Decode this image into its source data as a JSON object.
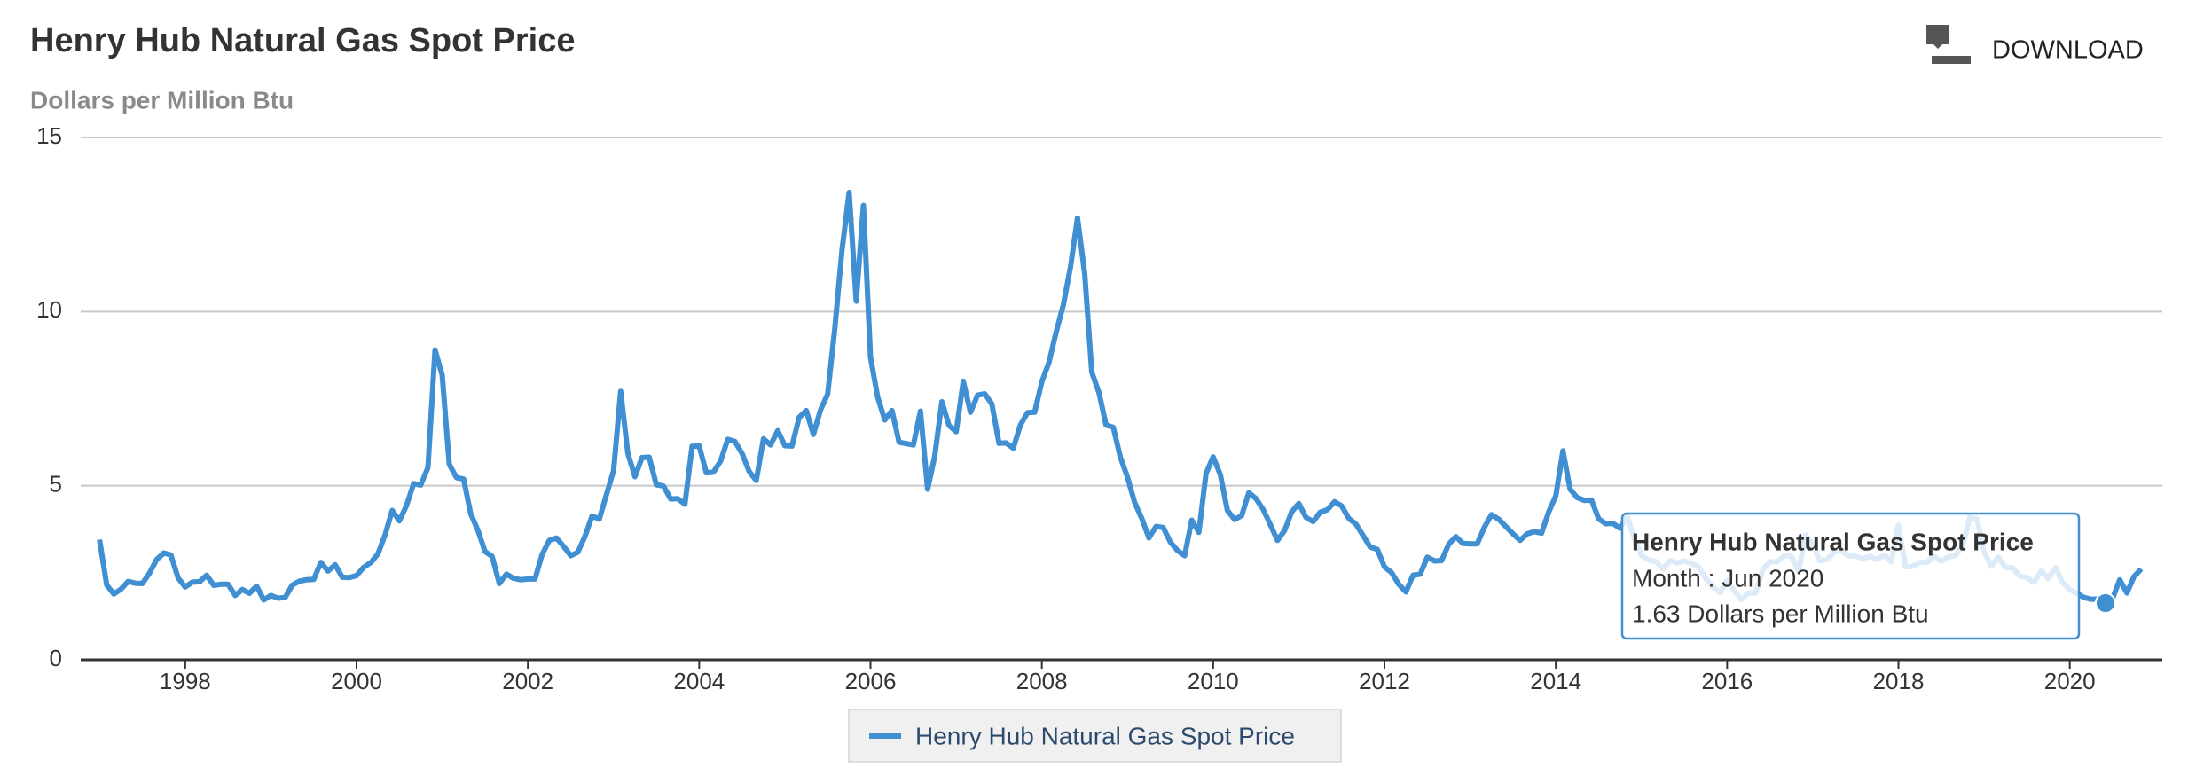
{
  "chart_data": {
    "type": "line",
    "title": "Henry Hub Natural Gas Spot Price",
    "subtitle": "Dollars per Million Btu",
    "download": "DOWNLOAD",
    "x": [
      "1997-01",
      "1997-02",
      "1997-03",
      "1997-04",
      "1997-05",
      "1997-06",
      "1997-07",
      "1997-08",
      "1997-09",
      "1997-10",
      "1997-11",
      "1997-12",
      "1998-01",
      "1998-02",
      "1998-03",
      "1998-04",
      "1998-05",
      "1998-06",
      "1998-07",
      "1998-08",
      "1998-09",
      "1998-10",
      "1998-11",
      "1998-12",
      "1999-01",
      "1999-02",
      "1999-03",
      "1999-04",
      "1999-05",
      "1999-06",
      "1999-07",
      "1999-08",
      "1999-09",
      "1999-10",
      "1999-11",
      "1999-12",
      "2000-01",
      "2000-02",
      "2000-03",
      "2000-04",
      "2000-05",
      "2000-06",
      "2000-07",
      "2000-08",
      "2000-09",
      "2000-10",
      "2000-11",
      "2000-12",
      "2001-01",
      "2001-02",
      "2001-03",
      "2001-04",
      "2001-05",
      "2001-06",
      "2001-07",
      "2001-08",
      "2001-09",
      "2001-10",
      "2001-11",
      "2001-12",
      "2002-01",
      "2002-02",
      "2002-03",
      "2002-04",
      "2002-05",
      "2002-06",
      "2002-07",
      "2002-08",
      "2002-09",
      "2002-10",
      "2002-11",
      "2002-12",
      "2003-01",
      "2003-02",
      "2003-03",
      "2003-04",
      "2003-05",
      "2003-06",
      "2003-07",
      "2003-08",
      "2003-09",
      "2003-10",
      "2003-11",
      "2003-12",
      "2004-01",
      "2004-02",
      "2004-03",
      "2004-04",
      "2004-05",
      "2004-06",
      "2004-07",
      "2004-08",
      "2004-09",
      "2004-10",
      "2004-11",
      "2004-12",
      "2005-01",
      "2005-02",
      "2005-03",
      "2005-04",
      "2005-05",
      "2005-06",
      "2005-07",
      "2005-08",
      "2005-09",
      "2005-10",
      "2005-11",
      "2005-12",
      "2006-01",
      "2006-02",
      "2006-03",
      "2006-04",
      "2006-05",
      "2006-06",
      "2006-07",
      "2006-08",
      "2006-09",
      "2006-10",
      "2006-11",
      "2006-12",
      "2007-01",
      "2007-02",
      "2007-03",
      "2007-04",
      "2007-05",
      "2007-06",
      "2007-07",
      "2007-08",
      "2007-09",
      "2007-10",
      "2007-11",
      "2007-12",
      "2008-01",
      "2008-02",
      "2008-03",
      "2008-04",
      "2008-05",
      "2008-06",
      "2008-07",
      "2008-08",
      "2008-09",
      "2008-10",
      "2008-11",
      "2008-12",
      "2009-01",
      "2009-02",
      "2009-03",
      "2009-04",
      "2009-05",
      "2009-06",
      "2009-07",
      "2009-08",
      "2009-09",
      "2009-10",
      "2009-11",
      "2009-12",
      "2010-01",
      "2010-02",
      "2010-03",
      "2010-04",
      "2010-05",
      "2010-06",
      "2010-07",
      "2010-08",
      "2010-09",
      "2010-10",
      "2010-11",
      "2010-12",
      "2011-01",
      "2011-02",
      "2011-03",
      "2011-04",
      "2011-05",
      "2011-06",
      "2011-07",
      "2011-08",
      "2011-09",
      "2011-10",
      "2011-11",
      "2011-12",
      "2012-01",
      "2012-02",
      "2012-03",
      "2012-04",
      "2012-05",
      "2012-06",
      "2012-07",
      "2012-08",
      "2012-09",
      "2012-10",
      "2012-11",
      "2012-12",
      "2013-01",
      "2013-02",
      "2013-03",
      "2013-04",
      "2013-05",
      "2013-06",
      "2013-07",
      "2013-08",
      "2013-09",
      "2013-10",
      "2013-11",
      "2013-12",
      "2014-01",
      "2014-02",
      "2014-03",
      "2014-04",
      "2014-05",
      "2014-06",
      "2014-07",
      "2014-08",
      "2014-09",
      "2014-10",
      "2014-11",
      "2014-12",
      "2015-01",
      "2015-02",
      "2015-03",
      "2015-04",
      "2015-05",
      "2015-06",
      "2015-07",
      "2015-08",
      "2015-09",
      "2015-10",
      "2015-11",
      "2015-12",
      "2016-01",
      "2016-02",
      "2016-03",
      "2016-04",
      "2016-05",
      "2016-06",
      "2016-07",
      "2016-08",
      "2016-09",
      "2016-10",
      "2016-11",
      "2016-12",
      "2017-01",
      "2017-02",
      "2017-03",
      "2017-04",
      "2017-05",
      "2017-06",
      "2017-07",
      "2017-08",
      "2017-09",
      "2017-10",
      "2017-11",
      "2017-12",
      "2018-01",
      "2018-02",
      "2018-03",
      "2018-04",
      "2018-05",
      "2018-06",
      "2018-07",
      "2018-08",
      "2018-09",
      "2018-10",
      "2018-11",
      "2018-12",
      "2019-01",
      "2019-02",
      "2019-03",
      "2019-04",
      "2019-05",
      "2019-06",
      "2019-07",
      "2019-08",
      "2019-09",
      "2019-10",
      "2019-11",
      "2019-12",
      "2020-01",
      "2020-02",
      "2020-03",
      "2020-04",
      "2020-05",
      "2020-06",
      "2020-07",
      "2020-08",
      "2020-09",
      "2020-10",
      "2020-11"
    ],
    "series": [
      {
        "name": "Henry Hub Natural Gas Spot Price",
        "color": "#3f8fd2",
        "values": [
          3.45,
          2.15,
          1.89,
          2.03,
          2.25,
          2.2,
          2.19,
          2.49,
          2.88,
          3.07,
          3.01,
          2.35,
          2.09,
          2.23,
          2.24,
          2.43,
          2.14,
          2.17,
          2.17,
          1.85,
          2.02,
          1.91,
          2.12,
          1.72,
          1.85,
          1.77,
          1.79,
          2.15,
          2.26,
          2.3,
          2.31,
          2.8,
          2.55,
          2.73,
          2.37,
          2.36,
          2.42,
          2.66,
          2.79,
          3.04,
          3.59,
          4.29,
          3.99,
          4.43,
          5.06,
          5.02,
          5.52,
          8.9,
          8.17,
          5.61,
          5.23,
          5.19,
          4.19,
          3.72,
          3.11,
          2.97,
          2.19,
          2.46,
          2.34,
          2.3,
          2.32,
          2.32,
          3.03,
          3.43,
          3.5,
          3.26,
          2.99,
          3.09,
          3.55,
          4.13,
          4.04,
          4.74,
          5.43,
          7.71,
          5.93,
          5.26,
          5.81,
          5.82,
          5.03,
          4.99,
          4.62,
          4.63,
          4.47,
          6.13,
          6.14,
          5.37,
          5.39,
          5.71,
          6.33,
          6.27,
          5.93,
          5.41,
          5.15,
          6.35,
          6.17,
          6.58,
          6.15,
          6.14,
          6.96,
          7.16,
          6.47,
          7.18,
          7.63,
          9.53,
          11.75,
          13.42,
          10.3,
          13.05,
          8.69,
          7.54,
          6.89,
          7.16,
          6.25,
          6.21,
          6.17,
          7.14,
          4.9,
          5.85,
          7.41,
          6.73,
          6.55,
          8.0,
          7.11,
          7.6,
          7.64,
          7.35,
          6.22,
          6.23,
          6.08,
          6.74,
          7.1,
          7.11,
          7.99,
          8.54,
          9.41,
          10.18,
          11.27,
          12.69,
          11.09,
          8.26,
          7.67,
          6.74,
          6.68,
          5.82,
          5.24,
          4.52,
          4.06,
          3.5,
          3.83,
          3.8,
          3.38,
          3.14,
          2.99,
          4.01,
          3.66,
          5.35,
          5.83,
          5.32,
          4.29,
          4.03,
          4.14,
          4.8,
          4.63,
          4.32,
          3.89,
          3.43,
          3.71,
          4.25,
          4.49,
          4.09,
          3.97,
          4.24,
          4.31,
          4.54,
          4.42,
          4.06,
          3.9,
          3.57,
          3.24,
          3.17,
          2.67,
          2.5,
          2.17,
          1.95,
          2.43,
          2.46,
          2.95,
          2.84,
          2.85,
          3.32,
          3.54,
          3.34,
          3.33,
          3.33,
          3.81,
          4.17,
          4.04,
          3.83,
          3.62,
          3.43,
          3.62,
          3.68,
          3.64,
          4.24,
          4.71,
          6.0,
          4.9,
          4.66,
          4.58,
          4.59,
          4.05,
          3.91,
          3.92,
          3.78,
          4.12,
          3.48,
          2.99,
          2.87,
          2.83,
          2.61,
          2.85,
          2.78,
          2.84,
          2.77,
          2.66,
          2.34,
          2.09,
          1.93,
          2.28,
          1.99,
          1.73,
          1.92,
          1.92,
          2.59,
          2.82,
          2.82,
          2.99,
          2.98,
          2.55,
          3.59,
          3.3,
          2.85,
          2.88,
          3.1,
          3.15,
          2.98,
          2.98,
          2.9,
          2.98,
          2.88,
          3.01,
          2.82,
          3.87,
          2.67,
          2.69,
          2.8,
          2.8,
          2.97,
          2.83,
          2.96,
          3.0,
          3.28,
          4.09,
          4.04,
          3.11,
          2.69,
          2.95,
          2.65,
          2.64,
          2.4,
          2.37,
          2.22,
          2.56,
          2.33,
          2.65,
          2.22,
          2.02,
          1.91,
          1.79,
          1.74,
          1.75,
          1.63,
          1.77,
          2.3,
          1.92,
          2.39,
          2.61
        ]
      }
    ],
    "xlim": [
      1996.78,
      2021.08
    ],
    "xticks": [
      1998,
      2000,
      2002,
      2004,
      2006,
      2008,
      2010,
      2012,
      2014,
      2016,
      2018,
      2020
    ],
    "ylim": [
      0,
      15
    ],
    "yticks": [
      0,
      5,
      10,
      15
    ],
    "grid": true,
    "legend": "bottom",
    "tooltip": {
      "title": "Henry Hub Natural Gas Spot Price",
      "x": "2020-06",
      "lines": [
        "Month : Jun 2020",
        "1.63 Dollars per Million Btu"
      ]
    }
  }
}
